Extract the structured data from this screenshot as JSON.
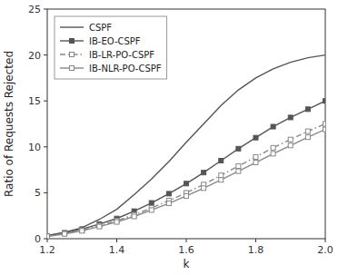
{
  "chart_data": {
    "type": "line",
    "xlabel": "k",
    "ylabel": "Ratio of Requests Rejected",
    "x": [
      1.2,
      1.25,
      1.3,
      1.35,
      1.4,
      1.45,
      1.5,
      1.55,
      1.6,
      1.65,
      1.7,
      1.75,
      1.8,
      1.85,
      1.9,
      1.95,
      2.0
    ],
    "series": [
      {
        "name": "CSPF",
        "color": "#555555",
        "marker": "none",
        "line_style": "solid",
        "values": [
          0.35,
          0.7,
          1.2,
          2.1,
          3.2,
          4.8,
          6.5,
          8.4,
          10.5,
          12.5,
          14.5,
          16.2,
          17.5,
          18.5,
          19.2,
          19.7,
          20.0
        ]
      },
      {
        "name": "IB-EO-CSPF",
        "color": "#555555",
        "marker": "square",
        "line_style": "solid",
        "values": [
          0.3,
          0.65,
          1.05,
          1.6,
          2.2,
          3.0,
          3.9,
          4.9,
          6.0,
          7.2,
          8.5,
          9.8,
          11.0,
          12.2,
          13.2,
          14.1,
          15.0
        ]
      },
      {
        "name": "IB-LR-PO-CSPF",
        "color": "#888888",
        "marker": "square-open",
        "line_style": "dashdot",
        "values": [
          0.28,
          0.58,
          0.92,
          1.42,
          1.95,
          2.6,
          3.35,
          4.15,
          5.0,
          5.9,
          6.9,
          7.9,
          8.9,
          9.9,
          10.8,
          11.7,
          12.5
        ]
      },
      {
        "name": "IB-NLR-PO-CSPF",
        "color": "#888888",
        "marker": "square-open",
        "line_style": "solid",
        "values": [
          0.25,
          0.52,
          0.85,
          1.32,
          1.82,
          2.42,
          3.12,
          3.85,
          4.65,
          5.5,
          6.4,
          7.35,
          8.3,
          9.25,
          10.15,
          11.05,
          11.9
        ]
      }
    ],
    "xlim": [
      1.2,
      2.0
    ],
    "ylim": [
      0,
      25
    ],
    "xticks": [
      1.2,
      1.4,
      1.6,
      1.8,
      {
        "value": 2.0,
        "label": "2.0"
      }
    ],
    "yticks": [
      0,
      5,
      10,
      15,
      20,
      25
    ],
    "legend": "upper left"
  }
}
